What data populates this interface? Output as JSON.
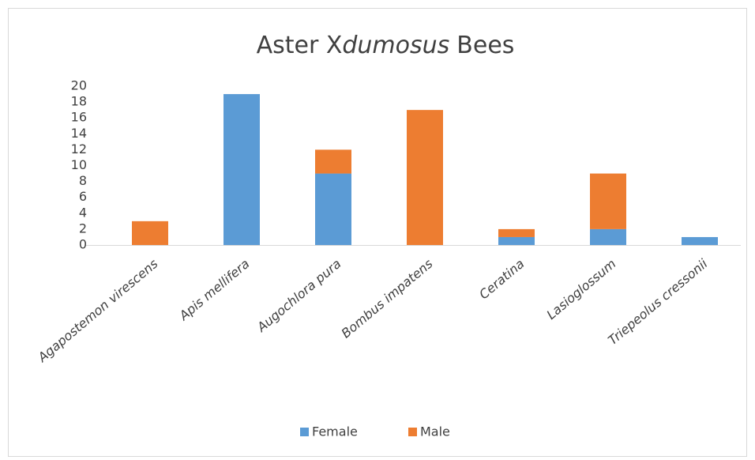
{
  "chart_data": {
    "type": "stacked-bar",
    "title": [
      "Aster X",
      "dumosus",
      "Bees"
    ],
    "categories": [
      "Agapostemon virescens",
      "Apis mellifera",
      "Augochlora pura",
      "Bombus impatens",
      "Ceratina",
      "Lasioglossum",
      "Triepeolus cressonii"
    ],
    "series": [
      {
        "name": "Female",
        "color": "#5b9bd5",
        "values": [
          0,
          19,
          9,
          0,
          1,
          2,
          1
        ]
      },
      {
        "name": "Male",
        "color": "#ed7d31",
        "values": [
          3,
          0,
          3,
          17,
          1,
          7,
          0
        ]
      }
    ],
    "ylim": [
      0,
      20
    ],
    "yticks": [
      0,
      2,
      4,
      6,
      8,
      10,
      12,
      14,
      16,
      18,
      20
    ],
    "grid": false,
    "legend": "bottom"
  }
}
